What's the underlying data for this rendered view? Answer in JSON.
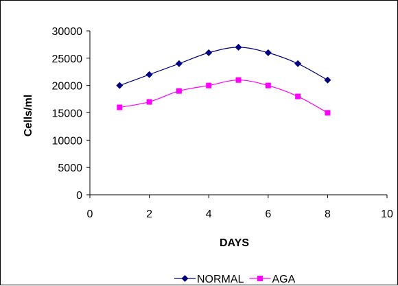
{
  "chart_data": {
    "type": "line",
    "xlabel": "DAYS",
    "ylabel": "Cells/ml",
    "xlim": [
      0,
      10
    ],
    "ylim": [
      0,
      30000
    ],
    "xticks": [
      0,
      2,
      4,
      6,
      8,
      10
    ],
    "yticks": [
      0,
      5000,
      10000,
      15000,
      20000,
      25000,
      30000
    ],
    "grid": false,
    "legend_position": "bottom",
    "series": [
      {
        "name": "NORMAL",
        "color": "#000080",
        "marker": "diamond",
        "x": [
          1,
          2,
          3,
          4,
          5,
          6,
          7,
          8
        ],
        "y": [
          20000,
          22000,
          24000,
          26000,
          27000,
          26000,
          24000,
          21000
        ]
      },
      {
        "name": "AGA",
        "color": "#ff00ff",
        "marker": "square",
        "x": [
          1,
          2,
          3,
          4,
          5,
          6,
          7,
          8
        ],
        "y": [
          16000,
          17000,
          19000,
          20000,
          21000,
          20000,
          18000,
          15000
        ]
      }
    ]
  }
}
